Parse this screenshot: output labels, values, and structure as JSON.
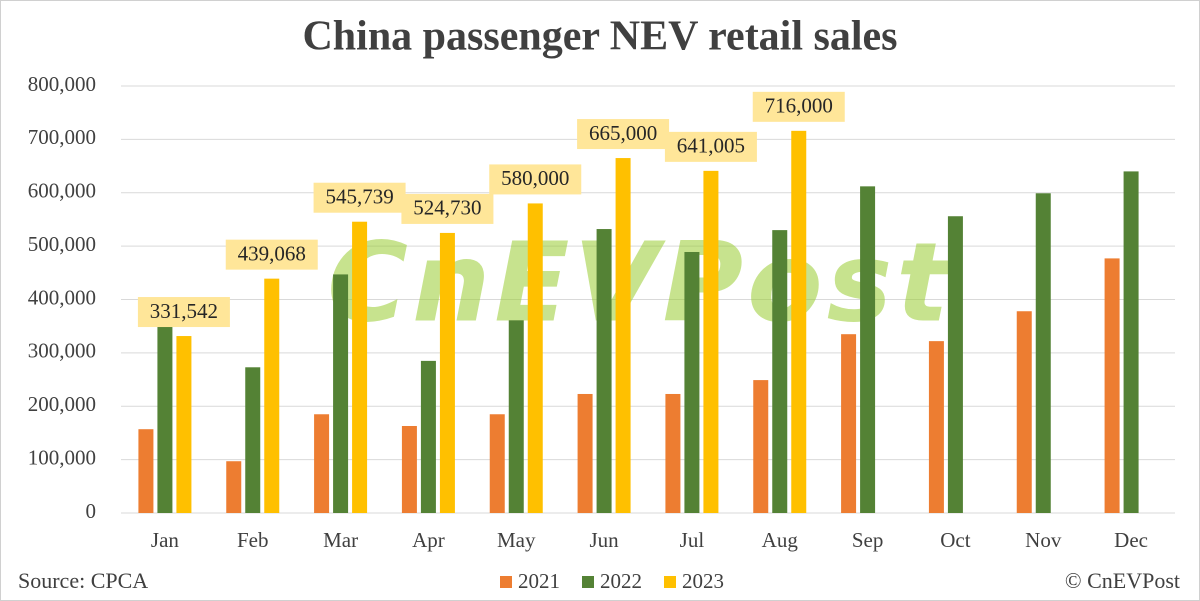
{
  "chart_data": {
    "type": "bar",
    "title": "China passenger NEV retail sales",
    "watermark": "CnEVPost",
    "source": "Source: CPCA",
    "credit": "© CnEVPost",
    "categories": [
      "Jan",
      "Feb",
      "Mar",
      "Apr",
      "May",
      "Jun",
      "Jul",
      "Aug",
      "Sep",
      "Oct",
      "Nov",
      "Dec"
    ],
    "series": [
      {
        "name": "2021",
        "color": "#ed7d31",
        "values": [
          157000,
          97000,
          185000,
          163000,
          185000,
          223000,
          223000,
          249000,
          335000,
          322000,
          378000,
          477000
        ]
      },
      {
        "name": "2022",
        "color": "#548235",
        "values": [
          350000,
          273000,
          447000,
          285000,
          361000,
          532000,
          489000,
          530000,
          612000,
          556000,
          599000,
          640000
        ]
      },
      {
        "name": "2023",
        "color": "#ffc000",
        "values": [
          331542,
          439068,
          545739,
          524730,
          580000,
          665000,
          641005,
          716000,
          null,
          null,
          null,
          null
        ],
        "value_labels": [
          "331,542",
          "439,068",
          "545,739",
          "524,730",
          "580,000",
          "665,000",
          "641,005",
          "716,000",
          null,
          null,
          null,
          null
        ]
      }
    ],
    "ylim": [
      0,
      800000
    ],
    "yticks": [
      0,
      {
        "value": 100000,
        "label": "100,000"
      },
      {
        "value": 200000,
        "label": "200,000"
      },
      {
        "value": 300000,
        "label": "300,000"
      },
      {
        "value": 400000,
        "label": "400,000"
      },
      {
        "value": 500000,
        "label": "500,000"
      },
      {
        "value": 600000,
        "label": "600,000"
      },
      {
        "value": 700000,
        "label": "700,000"
      },
      {
        "value": 800000,
        "label": "800,000"
      }
    ],
    "grid": true,
    "legend": "bottom"
  }
}
